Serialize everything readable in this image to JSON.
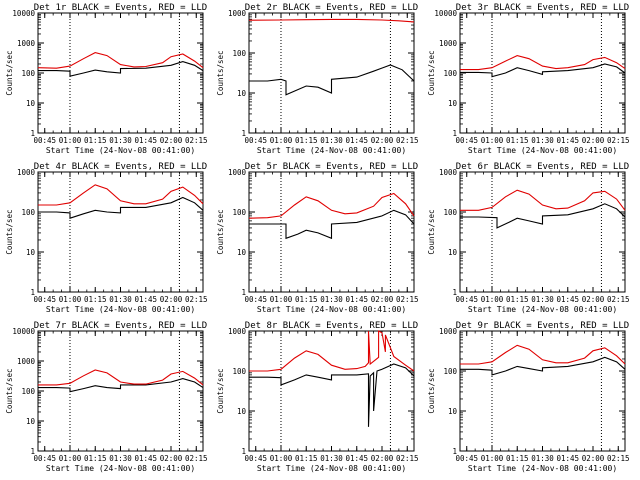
{
  "figure": {
    "colors": {
      "events": "#000000",
      "lld": "#e00000",
      "axis": "#000000"
    }
  },
  "chart_data": [
    {
      "type": "line",
      "title": "Det 1r BLACK = Events, RED = LLD",
      "xlabel": "Start Time (24-Nov-08 00:41:00)",
      "ylabel": "Counts/sec",
      "x_ticks": [
        "00:45",
        "01:00",
        "01:15",
        "01:30",
        "01:45",
        "02:00",
        "02:15"
      ],
      "y_ticks": [
        "1",
        "10",
        "100",
        "1000",
        "10000"
      ],
      "yscale": "log",
      "ylim": [
        1,
        10000
      ],
      "xlim": [
        "00:41",
        "02:19"
      ],
      "vlines": [
        "01:00",
        "02:05"
      ],
      "grid": false,
      "series": [
        {
          "name": "Events",
          "color": "#000000",
          "x": [
            "00:41",
            "00:52",
            "01:00",
            "01:00",
            "01:08",
            "01:15",
            "01:22",
            "01:30",
            "01:30",
            "01:45",
            "02:00",
            "02:07",
            "02:14",
            "02:19"
          ],
          "y": [
            120,
            120,
            115,
            78,
            100,
            125,
            110,
            100,
            140,
            145,
            180,
            240,
            180,
            120
          ]
        },
        {
          "name": "LLD",
          "color": "#e00000",
          "x": [
            "00:41",
            "00:52",
            "01:00",
            "01:08",
            "01:15",
            "01:22",
            "01:30",
            "01:38",
            "01:45",
            "01:55",
            "02:00",
            "02:07",
            "02:14",
            "02:19"
          ],
          "y": [
            150,
            145,
            170,
            300,
            480,
            380,
            190,
            160,
            165,
            220,
            350,
            430,
            250,
            150
          ]
        }
      ]
    },
    {
      "type": "line",
      "title": "Det 2r BLACK = Events, RED = LLD",
      "xlabel": "Start Time (24-Nov-08 00:41:00)",
      "ylabel": "Counts/sec",
      "x_ticks": [
        "00:45",
        "01:00",
        "01:15",
        "01:30",
        "01:45",
        "02:00",
        "02:15"
      ],
      "y_ticks": [
        "1",
        "10",
        "100",
        "1000"
      ],
      "yscale": "log",
      "ylim": [
        1,
        1000
      ],
      "xlim": [
        "00:41",
        "02:19"
      ],
      "vlines": [
        "01:00",
        "02:05"
      ],
      "grid": false,
      "series": [
        {
          "name": "Events",
          "color": "#000000",
          "x": [
            "00:41",
            "00:52",
            "01:00",
            "01:03",
            "01:03",
            "01:15",
            "01:22",
            "01:30",
            "01:30",
            "01:45",
            "01:55",
            "02:05",
            "02:12",
            "02:19"
          ],
          "y": [
            20,
            20,
            22,
            20,
            9,
            15,
            14,
            10,
            22,
            25,
            35,
            50,
            38,
            20
          ]
        },
        {
          "name": "LLD",
          "color": "#e00000",
          "x": [
            "00:41",
            "01:00",
            "01:15",
            "01:30",
            "01:45",
            "02:00",
            "02:10",
            "02:19"
          ],
          "y": [
            660,
            670,
            680,
            690,
            690,
            670,
            640,
            600
          ]
        }
      ]
    },
    {
      "type": "line",
      "title": "Det 3r BLACK = Events, RED = LLD",
      "xlabel": "Start Time (24-Nov-08 00:41:00)",
      "ylabel": "Counts/sec",
      "x_ticks": [
        "00:45",
        "01:00",
        "01:15",
        "01:30",
        "01:45",
        "02:00",
        "02:15"
      ],
      "y_ticks": [
        "1",
        "10",
        "100",
        "1000",
        "10000"
      ],
      "yscale": "log",
      "ylim": [
        1,
        10000
      ],
      "xlim": [
        "00:41",
        "02:19"
      ],
      "vlines": [
        "01:00",
        "02:05"
      ],
      "grid": false,
      "series": [
        {
          "name": "Events",
          "color": "#000000",
          "x": [
            "00:41",
            "00:52",
            "01:00",
            "01:00",
            "01:08",
            "01:15",
            "01:22",
            "01:30",
            "01:30",
            "01:45",
            "02:00",
            "02:07",
            "02:14",
            "02:19"
          ],
          "y": [
            105,
            105,
            100,
            75,
            100,
            150,
            120,
            90,
            110,
            120,
            150,
            200,
            160,
            100
          ]
        },
        {
          "name": "LLD",
          "color": "#e00000",
          "x": [
            "00:41",
            "00:52",
            "01:00",
            "01:08",
            "01:15",
            "01:22",
            "01:30",
            "01:38",
            "01:45",
            "01:55",
            "02:00",
            "02:07",
            "02:14",
            "02:19"
          ],
          "y": [
            130,
            130,
            150,
            250,
            380,
            300,
            170,
            140,
            150,
            190,
            280,
            330,
            220,
            140
          ]
        }
      ]
    },
    {
      "type": "line",
      "title": "Det 4r BLACK = Events, RED = LLD",
      "xlabel": "Start Time (24-Nov-08 00:41:00)",
      "ylabel": "Counts/sec",
      "x_ticks": [
        "00:45",
        "01:00",
        "01:15",
        "01:30",
        "01:45",
        "02:00",
        "02:15"
      ],
      "y_ticks": [
        "1",
        "10",
        "100",
        "1000"
      ],
      "yscale": "log",
      "ylim": [
        1,
        1000
      ],
      "xlim": [
        "00:41",
        "02:19"
      ],
      "vlines": [
        "01:00",
        "02:05"
      ],
      "grid": false,
      "series": [
        {
          "name": "Events",
          "color": "#000000",
          "x": [
            "00:41",
            "00:52",
            "01:00",
            "01:00",
            "01:08",
            "01:15",
            "01:22",
            "01:30",
            "01:30",
            "01:45",
            "02:00",
            "02:07",
            "02:14",
            "02:19"
          ],
          "y": [
            100,
            100,
            95,
            70,
            90,
            110,
            100,
            95,
            130,
            130,
            170,
            230,
            170,
            110
          ]
        },
        {
          "name": "LLD",
          "color": "#e00000",
          "x": [
            "00:41",
            "00:52",
            "01:00",
            "01:08",
            "01:15",
            "01:22",
            "01:30",
            "01:38",
            "01:45",
            "01:55",
            "02:00",
            "02:07",
            "02:14",
            "02:19"
          ],
          "y": [
            150,
            150,
            170,
            300,
            480,
            380,
            190,
            160,
            160,
            210,
            330,
            420,
            260,
            160
          ]
        }
      ]
    },
    {
      "type": "line",
      "title": "Det 5r BLACK = Events, RED = LLD",
      "xlabel": "Start Time (24-Nov-08 00:41:00)",
      "ylabel": "Counts/sec",
      "x_ticks": [
        "00:45",
        "01:00",
        "01:15",
        "01:30",
        "01:45",
        "02:00",
        "02:15"
      ],
      "y_ticks": [
        "1",
        "10",
        "100",
        "1000"
      ],
      "yscale": "log",
      "ylim": [
        1,
        1000
      ],
      "xlim": [
        "00:41",
        "02:19"
      ],
      "vlines": [
        "01:00",
        "02:05"
      ],
      "grid": false,
      "series": [
        {
          "name": "Events",
          "color": "#000000",
          "x": [
            "00:41",
            "00:52",
            "01:03",
            "01:03",
            "01:10",
            "01:15",
            "01:22",
            "01:30",
            "01:30",
            "01:45",
            "02:00",
            "02:07",
            "02:14",
            "02:19"
          ],
          "y": [
            50,
            50,
            50,
            22,
            28,
            35,
            30,
            22,
            50,
            55,
            80,
            110,
            85,
            50
          ]
        },
        {
          "name": "LLD",
          "color": "#e00000",
          "x": [
            "00:41",
            "00:52",
            "01:00",
            "01:08",
            "01:15",
            "01:22",
            "01:30",
            "01:38",
            "01:45",
            "01:55",
            "02:00",
            "02:07",
            "02:14",
            "02:19"
          ],
          "y": [
            70,
            72,
            80,
            150,
            240,
            190,
            110,
            90,
            95,
            140,
            230,
            290,
            160,
            80
          ]
        }
      ]
    },
    {
      "type": "line",
      "title": "Det 6r BLACK = Events, RED = LLD",
      "xlabel": "Start Time (24-Nov-08 00:41:00)",
      "ylabel": "Counts/sec",
      "x_ticks": [
        "00:45",
        "01:00",
        "01:15",
        "01:30",
        "01:45",
        "02:00",
        "02:15"
      ],
      "y_ticks": [
        "1",
        "10",
        "100",
        "1000"
      ],
      "yscale": "log",
      "ylim": [
        1,
        1000
      ],
      "xlim": [
        "00:41",
        "02:19"
      ],
      "vlines": [
        "01:00",
        "02:05"
      ],
      "grid": false,
      "series": [
        {
          "name": "Events",
          "color": "#000000",
          "x": [
            "00:41",
            "00:52",
            "01:03",
            "01:03",
            "01:10",
            "01:15",
            "01:22",
            "01:30",
            "01:30",
            "01:45",
            "02:00",
            "02:07",
            "02:14",
            "02:19"
          ],
          "y": [
            75,
            75,
            72,
            40,
            55,
            70,
            60,
            50,
            80,
            85,
            120,
            160,
            120,
            75
          ]
        },
        {
          "name": "LLD",
          "color": "#e00000",
          "x": [
            "00:41",
            "00:52",
            "01:00",
            "01:08",
            "01:15",
            "01:22",
            "01:30",
            "01:38",
            "01:45",
            "01:55",
            "02:00",
            "02:07",
            "02:14",
            "02:19"
          ],
          "y": [
            110,
            110,
            130,
            240,
            350,
            280,
            150,
            120,
            125,
            190,
            300,
            330,
            210,
            110
          ]
        }
      ]
    },
    {
      "type": "line",
      "title": "Det 7r BLACK = Events, RED = LLD",
      "xlabel": "Start Time (24-Nov-08 00:41:00)",
      "ylabel": "Counts/sec",
      "x_ticks": [
        "00:45",
        "01:00",
        "01:15",
        "01:30",
        "01:45",
        "02:00",
        "02:15"
      ],
      "y_ticks": [
        "1",
        "10",
        "100",
        "1000",
        "10000"
      ],
      "yscale": "log",
      "ylim": [
        1,
        10000
      ],
      "xlim": [
        "00:41",
        "02:19"
      ],
      "vlines": [
        "01:00",
        "02:05"
      ],
      "grid": false,
      "series": [
        {
          "name": "Events",
          "color": "#000000",
          "x": [
            "00:41",
            "00:52",
            "01:00",
            "01:00",
            "01:08",
            "01:15",
            "01:22",
            "01:30",
            "01:30",
            "01:45",
            "02:00",
            "02:07",
            "02:14",
            "02:19"
          ],
          "y": [
            130,
            130,
            125,
            95,
            120,
            150,
            130,
            120,
            160,
            160,
            200,
            260,
            200,
            130
          ]
        },
        {
          "name": "LLD",
          "color": "#e00000",
          "x": [
            "00:41",
            "00:52",
            "01:00",
            "01:08",
            "01:15",
            "01:22",
            "01:30",
            "01:38",
            "01:45",
            "01:55",
            "02:00",
            "02:07",
            "02:14",
            "02:19"
          ],
          "y": [
            160,
            160,
            180,
            320,
            500,
            400,
            200,
            170,
            170,
            230,
            370,
            450,
            270,
            160
          ]
        }
      ]
    },
    {
      "type": "line",
      "title": "Det 8r BLACK = Events, RED = LLD",
      "xlabel": "Start Time (24-Nov-08 00:41:00)",
      "ylabel": "Counts/sec",
      "x_ticks": [
        "00:45",
        "01:00",
        "01:15",
        "01:30",
        "01:45",
        "02:00",
        "02:15"
      ],
      "y_ticks": [
        "1",
        "10",
        "100",
        "1000"
      ],
      "yscale": "log",
      "ylim": [
        1,
        1000
      ],
      "xlim": [
        "00:41",
        "02:19"
      ],
      "vlines": [
        "01:00",
        "02:05"
      ],
      "grid": false,
      "series": [
        {
          "name": "Events",
          "color": "#000000",
          "x": [
            "00:41",
            "00:52",
            "01:00",
            "01:00",
            "01:08",
            "01:15",
            "01:22",
            "01:30",
            "01:30",
            "01:45",
            "01:52",
            "01:52",
            "01:53",
            "01:55",
            "01:55",
            "01:57",
            "02:00",
            "02:07",
            "02:14",
            "02:19"
          ],
          "y": [
            70,
            70,
            68,
            45,
            60,
            80,
            70,
            60,
            80,
            80,
            85,
            4,
            75,
            90,
            10,
            100,
            110,
            150,
            120,
            75
          ]
        },
        {
          "name": "LLD",
          "color": "#e00000",
          "x": [
            "00:41",
            "00:52",
            "01:00",
            "01:08",
            "01:15",
            "01:22",
            "01:30",
            "01:38",
            "01:45",
            "01:50",
            "01:52",
            "01:52",
            "01:53",
            "01:58",
            "01:58",
            "02:00",
            "02:02",
            "02:02",
            "02:07",
            "02:14",
            "02:19"
          ],
          "y": [
            100,
            100,
            110,
            210,
            320,
            260,
            140,
            110,
            115,
            130,
            160,
            1000,
            150,
            220,
            1000,
            900,
            300,
            800,
            230,
            140,
            100
          ]
        }
      ]
    },
    {
      "type": "line",
      "title": "Det 9r BLACK = Events, RED = LLD",
      "xlabel": "Start Time (24-Nov-08 00:41:00)",
      "ylabel": "Counts/sec",
      "x_ticks": [
        "00:45",
        "01:00",
        "01:15",
        "01:30",
        "01:45",
        "02:00",
        "02:15"
      ],
      "y_ticks": [
        "1",
        "10",
        "100",
        "1000"
      ],
      "yscale": "log",
      "ylim": [
        1,
        1000
      ],
      "xlim": [
        "00:41",
        "02:19"
      ],
      "vlines": [
        "01:00",
        "02:05"
      ],
      "grid": false,
      "series": [
        {
          "name": "Events",
          "color": "#000000",
          "x": [
            "00:41",
            "00:52",
            "01:00",
            "01:00",
            "01:08",
            "01:15",
            "01:22",
            "01:30",
            "01:30",
            "01:45",
            "02:00",
            "02:07",
            "02:14",
            "02:19"
          ],
          "y": [
            110,
            110,
            105,
            80,
            100,
            130,
            115,
            100,
            120,
            130,
            170,
            220,
            170,
            110
          ]
        },
        {
          "name": "LLD",
          "color": "#e00000",
          "x": [
            "00:41",
            "00:52",
            "01:00",
            "01:08",
            "01:15",
            "01:22",
            "01:30",
            "01:38",
            "01:45",
            "01:55",
            "02:00",
            "02:07",
            "02:14",
            "02:19"
          ],
          "y": [
            150,
            150,
            170,
            290,
            440,
            350,
            190,
            160,
            160,
            210,
            320,
            380,
            240,
            150
          ]
        }
      ]
    }
  ]
}
